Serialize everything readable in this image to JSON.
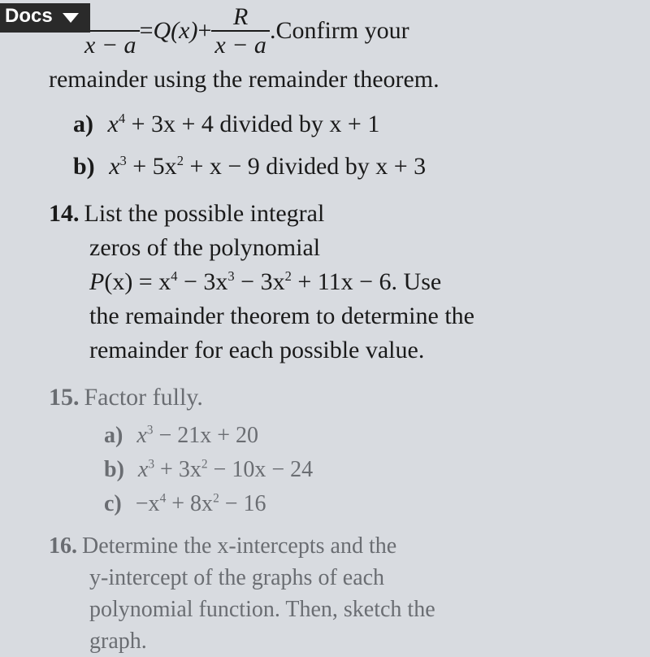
{
  "docs_label": "Docs",
  "header_eq": {
    "lhs_den": "x − a",
    "eq": " = ",
    "qx": "Q",
    "plus": " + ",
    "r_num": "R",
    "r_den": "x − a",
    "period": ".",
    "tail": " Confirm your"
  },
  "continuation": "remainder using the remainder theorem.",
  "q13a_label": "a)",
  "q13a_text_1": "x",
  "q13a_exp1": "4",
  "q13a_text_2": " + 3x + 4 divided by x + 1",
  "q13b_label": "b)",
  "q13b_text_1": "x",
  "q13b_exp1": "3",
  "q13b_text_2": " + 5x",
  "q13b_exp2": "2",
  "q13b_text_3": " + x − 9 divided by x + 3",
  "q14_num": "14.",
  "q14_l1": "List the possible integral",
  "q14_l2": "zeros of the polynomial",
  "q14_l3a": "P",
  "q14_l3b": "(x) = x",
  "q14_e1": "4",
  "q14_l3c": " − 3x",
  "q14_e2": "3",
  "q14_l3d": " − 3x",
  "q14_e3": "2",
  "q14_l3e": " + 11x − 6. Use",
  "q14_l4": "the remainder theorem to determine the",
  "q14_l5": "remainder for each possible value.",
  "q15_num": "15.",
  "q15_text": "Factor fully.",
  "q15a_label": "a)",
  "q15a_1": "x",
  "q15a_e1": "3",
  "q15a_2": " − 21x + 20",
  "q15b_label": "b)",
  "q15b_1": "x",
  "q15b_e1": "3",
  "q15b_2": " + 3x",
  "q15b_e2": "2",
  "q15b_3": " − 10x − 24",
  "q15c_label": "c)",
  "q15c_1": "−x",
  "q15c_e1": "4",
  "q15c_2": " + 8x",
  "q15c_e2": "2",
  "q15c_3": " − 16",
  "q16_num": "16.",
  "q16_l1": "Determine the x-intercepts and the",
  "q16_l2": "y-intercept of the graphs of each",
  "q16_l3": "polynomial function. Then, sketch the",
  "q16_l4": "graph."
}
